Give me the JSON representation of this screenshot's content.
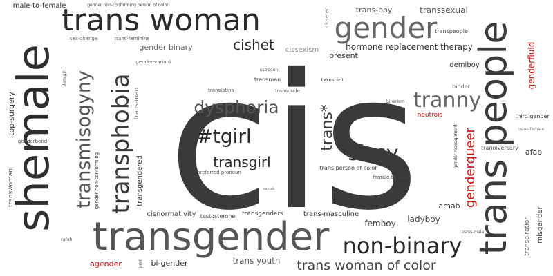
{
  "words": [
    {
      "text": "cis",
      "color": "#3a3a3a"
    },
    {
      "text": "shemale",
      "color": "#2e2e2e"
    },
    {
      "text": "trans woman",
      "color": "#2b2b2b"
    },
    {
      "text": "transgender",
      "color": "#555555"
    },
    {
      "text": "trans people",
      "color": "#3a3a3a"
    },
    {
      "text": "gender",
      "color": "#666666"
    },
    {
      "text": "transphobia",
      "color": "#3a3a3a"
    },
    {
      "text": "transmisogyny",
      "color": "#555555"
    },
    {
      "text": "non-binary",
      "color": "#2b2b2b"
    },
    {
      "text": "dysphoria",
      "color": "#555555"
    },
    {
      "text": "tranny",
      "color": "#666666"
    },
    {
      "text": "#tgirl",
      "color": "#2b2b2b"
    },
    {
      "text": "sissy",
      "color": "#3a3a3a"
    },
    {
      "text": "trans*",
      "color": "#3a3a3a"
    },
    {
      "text": "transgirl",
      "color": "#2b2b2b"
    },
    {
      "text": "genderqueer",
      "color": "#cc1111"
    },
    {
      "text": "cishet",
      "color": "#2b2b2b"
    },
    {
      "text": "trans woman of color",
      "color": "#444444"
    },
    {
      "text": "transsexual",
      "color": "#555555"
    },
    {
      "text": "trans-boy",
      "color": "#555555"
    },
    {
      "text": "transpeople",
      "color": "#444444"
    },
    {
      "text": "hormone replacement therapy",
      "color": "#333333"
    },
    {
      "text": "cissexism",
      "color": "#888888"
    },
    {
      "text": "present",
      "color": "#333333"
    },
    {
      "text": "gender binary",
      "color": "#666666"
    },
    {
      "text": "male-to-female",
      "color": "#333333"
    },
    {
      "text": "gender non-conforming person of color",
      "color": "#444444"
    },
    {
      "text": "sex-change",
      "color": "#666666"
    },
    {
      "text": "trans-feminine",
      "color": "#555555"
    },
    {
      "text": "gender-variant",
      "color": "#555555"
    },
    {
      "text": "closeted",
      "color": "#777777"
    },
    {
      "text": "genderfluid",
      "color": "#cc1111"
    },
    {
      "text": "demiboy",
      "color": "#333333"
    },
    {
      "text": "binder",
      "color": "#666666"
    },
    {
      "text": "binarism",
      "color": "#555555"
    },
    {
      "text": "neutrois",
      "color": "#cc1111"
    },
    {
      "text": "third gender",
      "color": "#333333"
    },
    {
      "text": "trans-female",
      "color": "#777777"
    },
    {
      "text": "tranniversary",
      "color": "#555555"
    },
    {
      "text": "afab",
      "color": "#333333"
    },
    {
      "text": "gender reassignment",
      "color": "#333333"
    },
    {
      "text": "misgender",
      "color": "#333333"
    },
    {
      "text": "transpiration",
      "color": "#555555"
    },
    {
      "text": "trans-male",
      "color": "#555555"
    },
    {
      "text": "amab",
      "color": "#333333"
    },
    {
      "text": "ladyboy",
      "color": "#444444"
    },
    {
      "text": "femboy",
      "color": "#444444"
    },
    {
      "text": "trans youth",
      "color": "#555555"
    },
    {
      "text": "bi-gender",
      "color": "#333333"
    },
    {
      "text": "agender",
      "color": "#cc1111"
    },
    {
      "text": "pret",
      "color": "#666666"
    },
    {
      "text": "cafab",
      "color": "#666666"
    },
    {
      "text": "transwoman",
      "color": "#555555"
    },
    {
      "text": "top-surgery",
      "color": "#333333"
    },
    {
      "text": "genderbend",
      "color": "#555555"
    },
    {
      "text": "gender non-conforming",
      "color": "#333333"
    },
    {
      "text": "transgendered",
      "color": "#333333"
    },
    {
      "text": "demigirl",
      "color": "#555555"
    },
    {
      "text": "trans-man",
      "color": "#666666"
    },
    {
      "text": "estrogen",
      "color": "#555555"
    },
    {
      "text": "transman",
      "color": "#444444"
    },
    {
      "text": "translatina",
      "color": "#555555"
    },
    {
      "text": "transdude",
      "color": "#555555"
    },
    {
      "text": "two-spirit",
      "color": "#333333"
    },
    {
      "text": "preferred pronoun",
      "color": "#555555"
    },
    {
      "text": "trans person of color",
      "color": "#333333"
    },
    {
      "text": "female-to-male",
      "color": "#444444"
    },
    {
      "text": "camab",
      "color": "#666666"
    },
    {
      "text": "cisnormativity",
      "color": "#444444"
    },
    {
      "text": "testosterone",
      "color": "#444444"
    },
    {
      "text": "transgenders",
      "color": "#444444"
    },
    {
      "text": "trans-masculine",
      "color": "#333333"
    }
  ]
}
